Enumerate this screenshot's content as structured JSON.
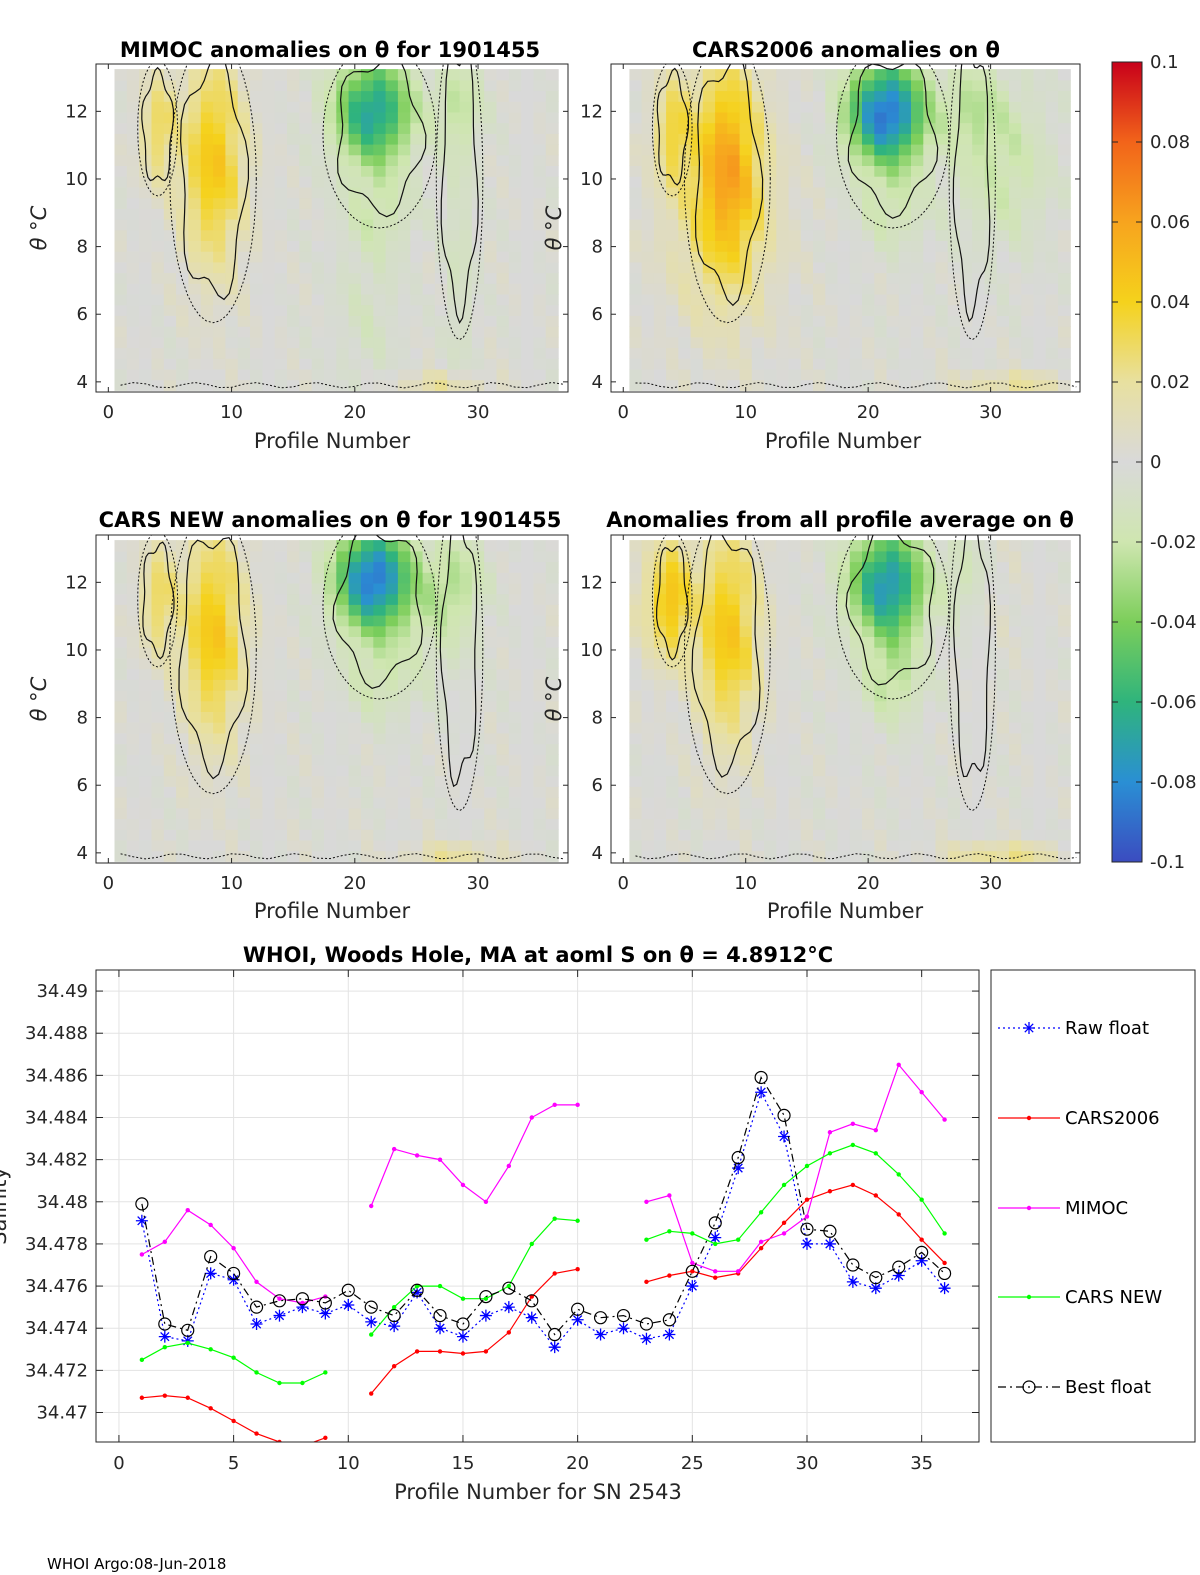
{
  "panels": [
    {
      "title": "MIMOC anomalies on θ  for 1901455",
      "ylabel": "θ °C",
      "xlabel": "Profile Number",
      "variant": "mimoc"
    },
    {
      "title": "CARS2006 anomalies on θ",
      "ylabel": "θ °C",
      "xlabel": "Profile Number",
      "variant": "cars2006"
    },
    {
      "title": "CARS NEW anomalies on θ for 1901455",
      "ylabel": "θ °C",
      "xlabel": "Profile Number",
      "variant": "carsnew"
    },
    {
      "title": "Anomalies from all profile average on θ",
      "ylabel": "θ °C",
      "xlabel": "Profile Number",
      "variant": "avg"
    }
  ],
  "heatmap_axes": {
    "xlim": [
      -1,
      37.3
    ],
    "ylim": [
      3.7,
      13.4
    ],
    "xticks": [
      0,
      10,
      20,
      30
    ],
    "yticks": [
      4,
      6,
      8,
      10,
      12
    ],
    "profiles_x": [
      1,
      36
    ]
  },
  "colorbar": {
    "min": -0.1,
    "max": 0.1,
    "ticks": [
      0.1,
      0.08,
      0.06,
      0.04,
      0.02,
      0,
      -0.02,
      -0.04,
      -0.06,
      -0.08,
      -0.1
    ],
    "tick_labels": [
      "0.1",
      "0.08",
      "0.06",
      "0.04",
      "0.02",
      "0",
      "-0.02",
      "-0.04",
      "-0.06",
      "-0.08",
      "-0.1"
    ],
    "colors": [
      "#3b4cc0",
      "#2a8fd4",
      "#2fb47c",
      "#7cce5a",
      "#cfe6b0",
      "#d9d9d9",
      "#e8e0a0",
      "#f5d21c",
      "#f7a41e",
      "#f2641a",
      "#c8001a"
    ]
  },
  "chart_data": {
    "type": "line",
    "title": "WHOI, Woods Hole, MA at aoml S on θ = 4.8912°C",
    "xlabel": "Profile Number for SN 2543",
    "ylabel": "Salinity",
    "xlim": [
      -1,
      37.5
    ],
    "ylim": [
      34.4686,
      34.491
    ],
    "xticks": [
      0,
      5,
      10,
      15,
      20,
      25,
      30,
      35
    ],
    "yticks": [
      34.47,
      34.472,
      34.474,
      34.476,
      34.478,
      34.48,
      34.482,
      34.484,
      34.486,
      34.488,
      34.49
    ],
    "ytick_labels": [
      "34.47",
      "34.472",
      "34.474",
      "34.476",
      "34.478",
      "34.48",
      "34.482",
      "34.484",
      "34.486",
      "34.488",
      "34.49"
    ],
    "grid": true,
    "legend_position": "outside-right",
    "series": [
      {
        "name": "Raw float",
        "color": "#0000ff",
        "style": "dotted",
        "marker": "star",
        "x": [
          1,
          2,
          3,
          4,
          5,
          6,
          7,
          8,
          9,
          10,
          11,
          12,
          13,
          14,
          15,
          16,
          17,
          18,
          19,
          20,
          21,
          22,
          23,
          24,
          25,
          26,
          27,
          28,
          29,
          30,
          31,
          32,
          33,
          34,
          35,
          36
        ],
        "y": [
          34.4791,
          34.4736,
          34.4734,
          34.4766,
          34.4763,
          34.4742,
          34.4746,
          34.475,
          34.4747,
          34.4751,
          34.4743,
          34.4741,
          34.4757,
          34.474,
          34.4736,
          34.4746,
          34.475,
          34.4745,
          34.4731,
          34.4744,
          34.4737,
          34.474,
          34.4735,
          34.4737,
          34.476,
          34.4783,
          34.4816,
          34.4852,
          34.4831,
          34.478,
          34.478,
          34.4762,
          34.4759,
          34.4765,
          34.4772,
          34.4759
        ]
      },
      {
        "name": "CARS2006",
        "color": "#ff0000",
        "style": "solid",
        "marker": "dot",
        "x": [
          1,
          2,
          3,
          4,
          5,
          6,
          7,
          8,
          9,
          null,
          11,
          12,
          13,
          14,
          15,
          16,
          17,
          18,
          19,
          20,
          null,
          23,
          24,
          25,
          26,
          27,
          28,
          29,
          30,
          31,
          32,
          33,
          34,
          35,
          36
        ],
        "y": [
          34.4707,
          34.4708,
          34.4707,
          34.4702,
          34.4696,
          34.469,
          34.4686,
          34.4684,
          34.4688,
          null,
          34.4709,
          34.4722,
          34.4729,
          34.4729,
          34.4728,
          34.4729,
          34.4738,
          34.4755,
          34.4766,
          34.4768,
          null,
          34.4762,
          34.4765,
          34.4767,
          34.4764,
          34.4766,
          34.4778,
          34.479,
          34.4801,
          34.4805,
          34.4808,
          34.4803,
          34.4794,
          34.4782,
          34.4771
        ]
      },
      {
        "name": "MIMOC",
        "color": "#ff00ff",
        "style": "solid",
        "marker": "dot",
        "x": [
          1,
          2,
          3,
          4,
          5,
          6,
          7,
          8,
          9,
          null,
          11,
          12,
          13,
          14,
          15,
          16,
          17,
          18,
          19,
          20,
          null,
          23,
          24,
          25,
          26,
          27,
          28,
          29,
          30,
          31,
          32,
          33,
          34,
          35,
          36
        ],
        "y": [
          34.4775,
          34.4781,
          34.4796,
          34.4789,
          34.4778,
          34.4762,
          34.4754,
          34.4752,
          34.4755,
          null,
          34.4798,
          34.4825,
          34.4822,
          34.482,
          34.4808,
          34.48,
          34.4817,
          34.484,
          34.4846,
          34.4846,
          null,
          34.48,
          34.4803,
          34.4771,
          34.4767,
          34.4767,
          34.4781,
          34.4785,
          34.4793,
          34.4833,
          34.4837,
          34.4834,
          34.4865,
          34.4852,
          34.4839
        ]
      },
      {
        "name": "CARS NEW",
        "color": "#00ff00",
        "style": "solid",
        "marker": "dot",
        "x": [
          1,
          2,
          3,
          4,
          5,
          6,
          7,
          8,
          9,
          null,
          11,
          12,
          13,
          14,
          15,
          16,
          17,
          18,
          19,
          20,
          null,
          23,
          24,
          25,
          26,
          27,
          28,
          29,
          30,
          31,
          32,
          33,
          34,
          35,
          36
        ],
        "y": [
          34.4725,
          34.4731,
          34.4733,
          34.473,
          34.4726,
          34.4719,
          34.4714,
          34.4714,
          34.4719,
          null,
          34.4737,
          34.475,
          34.476,
          34.476,
          34.4754,
          34.4754,
          34.476,
          34.478,
          34.4792,
          34.4791,
          null,
          34.4782,
          34.4786,
          34.4785,
          34.478,
          34.4782,
          34.4795,
          34.4808,
          34.4817,
          34.4823,
          34.4827,
          34.4823,
          34.4813,
          34.4801,
          34.4785
        ]
      },
      {
        "name": "Best float",
        "color": "#000000",
        "style": "dashdot",
        "marker": "circle",
        "x": [
          1,
          2,
          3,
          4,
          5,
          6,
          7,
          8,
          9,
          10,
          11,
          12,
          13,
          14,
          15,
          16,
          17,
          18,
          19,
          20,
          21,
          22,
          23,
          24,
          25,
          26,
          27,
          28,
          29,
          30,
          31,
          32,
          33,
          34,
          35,
          36
        ],
        "y": [
          34.4799,
          34.4742,
          34.4739,
          34.4774,
          34.4766,
          34.475,
          34.4753,
          34.4754,
          34.4752,
          34.4758,
          34.475,
          34.4746,
          34.4758,
          34.4746,
          34.4742,
          34.4755,
          34.4759,
          34.4753,
          34.4737,
          34.4749,
          34.4745,
          34.4746,
          34.4742,
          34.4744,
          34.4767,
          34.479,
          34.4821,
          34.4859,
          34.4841,
          34.4787,
          34.4786,
          34.477,
          34.4764,
          34.4769,
          34.4776,
          34.4766
        ]
      }
    ]
  },
  "footer": {
    "text": "WHOI Argo:08-Jun-2018"
  }
}
